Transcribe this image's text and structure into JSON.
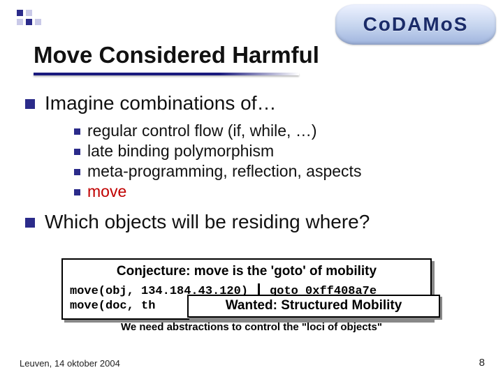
{
  "logo": {
    "text": "CoDAMoS"
  },
  "title": "Move Considered Harmful",
  "bullets": [
    {
      "text": "Imagine combinations of…",
      "sub": [
        {
          "text": "regular control flow (if, while, …)",
          "color": "#111111"
        },
        {
          "text": "late binding polymorphism",
          "color": "#111111"
        },
        {
          "text": "meta-programming, reflection, aspects",
          "color": "#111111"
        },
        {
          "text": "move",
          "color": "#c00000"
        }
      ]
    },
    {
      "text": "Which objects will be residing where?",
      "sub": []
    }
  ],
  "conjecture": {
    "title": "Conjecture: move is the 'goto' of mobility",
    "code_left_1": "move(obj, 134.184.43.120)",
    "code_right_1": "goto 0xff408a7e",
    "code_left_2": "move(doc, th"
  },
  "wanted": "Wanted: Structured Mobility",
  "footnote": "We need abstractions to control the \"loci of objects\"",
  "footer": {
    "left": "Leuven, 14 oktober 2004",
    "page": "8"
  },
  "colors": {
    "bullet_square": "#2b2b8a",
    "underline": "#1a1a7e",
    "move_red": "#c00000",
    "box_shadow": "#888888",
    "background": "#ffffff"
  },
  "fonts": {
    "title_size_pt": 25,
    "l1_size_pt": 21,
    "l2_size_pt": 17,
    "conj_title_pt": 14,
    "code_pt": 13,
    "footnote_pt": 11,
    "footer_pt": 10
  }
}
